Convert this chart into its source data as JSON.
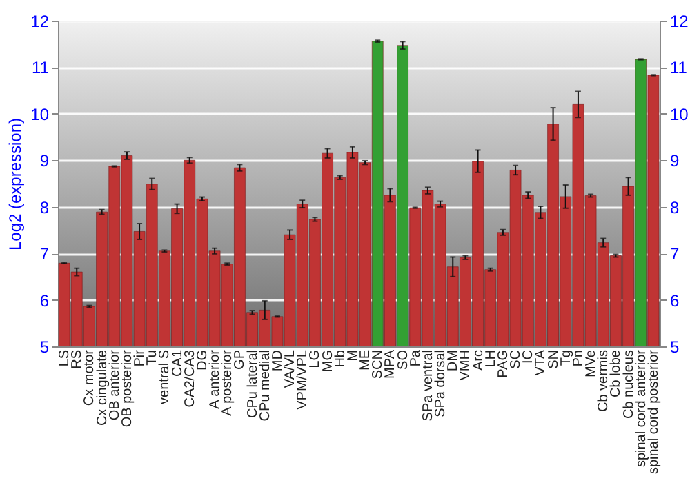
{
  "chart_data": {
    "type": "bar",
    "ylabel": "Log2 (expression)",
    "categories": [
      "LS",
      "RS",
      "Cx motor",
      "Cx cingulate",
      "OB anterior",
      "OB posterior",
      "Pir",
      "Tu",
      "ventral S",
      "CA1",
      "CA2/CA3",
      "DG",
      "A anterior",
      "A posterior",
      "GP",
      "CPu lateral",
      "CPu medial",
      "MD",
      "VA/VL",
      "VPM/VPL",
      "LG",
      "MG",
      "Hb",
      "M",
      "ME",
      "SCN",
      "MPA",
      "SO",
      "Pa",
      "SPa ventral",
      "SPa dorsal",
      "DM",
      "VMH",
      "Arc",
      "LH",
      "PAG",
      "SC",
      "IC",
      "VTA",
      "SN",
      "Tg",
      "Pn",
      "MVe",
      "Cb vermis",
      "Cb lobe",
      "Cb nucleus",
      "spinal cord anterior",
      "spinal cord posterior"
    ],
    "values": [
      6.79,
      6.6,
      5.86,
      7.89,
      8.87,
      9.1,
      7.47,
      8.49,
      7.05,
      7.96,
      9.0,
      8.17,
      7.05,
      6.77,
      8.84,
      5.73,
      5.78,
      5.64,
      7.4,
      8.06,
      7.73,
      9.15,
      8.63,
      9.17,
      8.95,
      11.56,
      8.25,
      11.47,
      7.98,
      8.35,
      8.06,
      6.71,
      6.91,
      8.98,
      6.65,
      7.45,
      8.79,
      8.25,
      7.88,
      9.78,
      8.22,
      10.2,
      8.24,
      7.23,
      6.95,
      8.44,
      11.17,
      10.83
    ],
    "errors": [
      0.01,
      0.08,
      0.02,
      0.05,
      0.01,
      0.08,
      0.17,
      0.12,
      0.02,
      0.1,
      0.06,
      0.04,
      0.06,
      0.02,
      0.07,
      0.04,
      0.2,
      0.01,
      0.1,
      0.08,
      0.04,
      0.1,
      0.04,
      0.12,
      0.04,
      0.02,
      0.14,
      0.08,
      0.01,
      0.07,
      0.06,
      0.21,
      0.04,
      0.24,
      0.03,
      0.06,
      0.1,
      0.07,
      0.13,
      0.35,
      0.25,
      0.28,
      0.03,
      0.09,
      0.03,
      0.19,
      0.01,
      0.01
    ],
    "colors": [
      "#c03434",
      "#c03434",
      "#c03434",
      "#c03434",
      "#c03434",
      "#c03434",
      "#c03434",
      "#c03434",
      "#c03434",
      "#c03434",
      "#c03434",
      "#c03434",
      "#c03434",
      "#c03434",
      "#c03434",
      "#c03434",
      "#c03434",
      "#c03434",
      "#c03434",
      "#c03434",
      "#c03434",
      "#c03434",
      "#c03434",
      "#c03434",
      "#c03434",
      "#33a033",
      "#c03434",
      "#33a033",
      "#c03434",
      "#c03434",
      "#c03434",
      "#c03434",
      "#c03434",
      "#c03434",
      "#c03434",
      "#c03434",
      "#c03434",
      "#c03434",
      "#c03434",
      "#c03434",
      "#c03434",
      "#c03434",
      "#c03434",
      "#c03434",
      "#c03434",
      "#c03434",
      "#33a033",
      "#c03434"
    ],
    "ylim": [
      5,
      12
    ],
    "yticks": [
      5,
      6,
      7,
      8,
      9,
      10,
      11,
      12
    ],
    "y2lim": [
      5,
      12
    ],
    "y2ticks": [
      5,
      6,
      7,
      8,
      9,
      10,
      11,
      12
    ],
    "grid": "y"
  }
}
